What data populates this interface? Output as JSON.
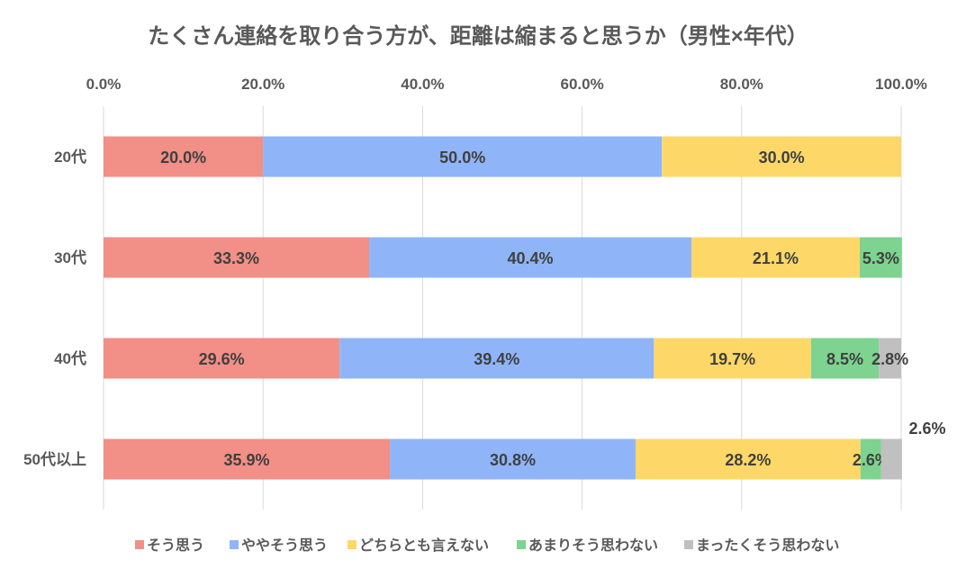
{
  "chart_data": {
    "type": "bar",
    "orientation": "horizontal",
    "stacked": "percent",
    "title": "たくさん連絡を取り合う方が、距離は縮まると思うか（男性×年代）",
    "categories": [
      "20代",
      "30代",
      "40代",
      "50代以上"
    ],
    "xlim": [
      0,
      100
    ],
    "x_ticks": [
      "0.0%",
      "20.0%",
      "40.0%",
      "60.0%",
      "80.0%",
      "100.0%"
    ],
    "grid": true,
    "legend_position": "bottom",
    "series": [
      {
        "name": "そう思う",
        "color": "#F28F86",
        "values": [
          20.0,
          33.3,
          29.6,
          35.9
        ],
        "labels": [
          "20.0%",
          "33.3%",
          "29.6%",
          "35.9%"
        ]
      },
      {
        "name": "ややそう思う",
        "color": "#8FB5F8",
        "values": [
          50.0,
          40.4,
          39.4,
          30.8
        ],
        "labels": [
          "50.0%",
          "40.4%",
          "39.4%",
          "30.8%"
        ]
      },
      {
        "name": "どちらとも言えない",
        "color": "#FDD868",
        "values": [
          30.0,
          21.1,
          19.7,
          28.2
        ],
        "labels": [
          "30.0%",
          "21.1%",
          "19.7%",
          "28.2%"
        ]
      },
      {
        "name": "あまりそう思わない",
        "color": "#7DD38F",
        "values": [
          0,
          5.3,
          8.5,
          2.6
        ],
        "labels": [
          "",
          "5.3%",
          "8.5%",
          "2.6%"
        ]
      },
      {
        "name": "まったくそう思わない",
        "color": "#C0C0C0",
        "values": [
          0,
          0,
          2.8,
          2.6
        ],
        "labels": [
          "",
          "",
          "2.8%",
          "2.6%"
        ]
      }
    ]
  }
}
